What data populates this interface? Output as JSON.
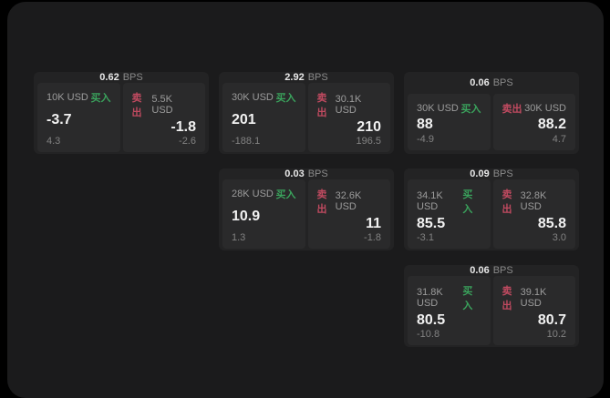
{
  "colors": {
    "buy_green": "#3aa25c",
    "sell_red": "#c04a60",
    "panel_bg": "#1b1b1c",
    "card_bg": "#232324",
    "tile_bg": "#2a2a2b"
  },
  "cards": [
    {
      "bps": "0.62",
      "unit": "BPS",
      "buy": {
        "size": "10K USD",
        "label": "买入",
        "price": "-3.7",
        "delta": "4.3"
      },
      "sell": {
        "label": "卖出",
        "size": "5.5K USD",
        "price": "-1.8",
        "delta": "-2.6"
      }
    },
    {
      "bps": "2.92",
      "unit": "BPS",
      "buy": {
        "size": "30K USD",
        "label": "买入",
        "price": "201",
        "delta": "-188.1"
      },
      "sell": {
        "label": "卖出",
        "size": "30.1K USD",
        "price": "210",
        "delta": "196.5"
      }
    },
    {
      "bps": "0.06",
      "unit": "BPS",
      "buy": {
        "size": "30K USD",
        "label": "买入",
        "price": "88",
        "delta": "-4.9"
      },
      "sell": {
        "label": "卖出",
        "size": "30K USD",
        "price": "88.2",
        "delta": "4.7"
      }
    },
    {
      "bps": "0.03",
      "unit": "BPS",
      "buy": {
        "size": "28K USD",
        "label": "买入",
        "price": "10.9",
        "delta": "1.3"
      },
      "sell": {
        "label": "卖出",
        "size": "32.6K USD",
        "price": "11",
        "delta": "-1.8"
      }
    },
    {
      "bps": "0.09",
      "unit": "BPS",
      "buy": {
        "size": "34.1K USD",
        "label": "买入",
        "price": "85.5",
        "delta": "-3.1"
      },
      "sell": {
        "label": "卖出",
        "size": "32.8K USD",
        "price": "85.8",
        "delta": "3.0"
      }
    },
    {
      "bps": "0.06",
      "unit": "BPS",
      "buy": {
        "size": "31.8K USD",
        "label": "买入",
        "price": "80.5",
        "delta": "-10.8"
      },
      "sell": {
        "label": "卖出",
        "size": "39.1K USD",
        "price": "80.7",
        "delta": "10.2"
      }
    }
  ]
}
